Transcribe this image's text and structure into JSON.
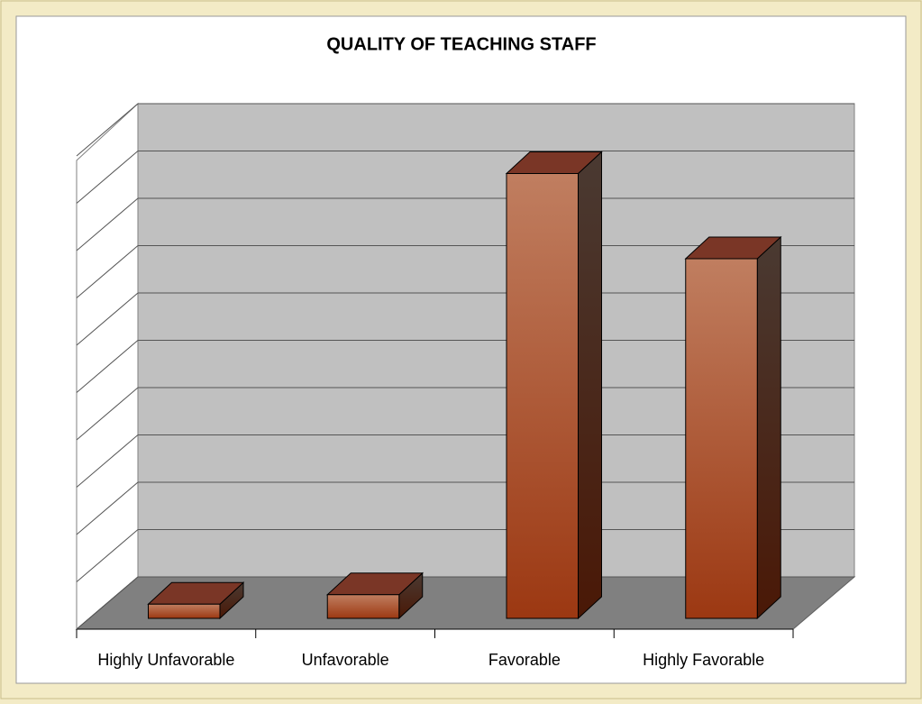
{
  "chart_data": {
    "type": "bar3d",
    "title": "QUALITY OF TEACHING STAFF",
    "categories": [
      "Highly Unfavorable",
      "Unfavorable",
      "Favorable",
      "Highly Favorable"
    ],
    "values": [
      0.3,
      0.5,
      9.4,
      7.6
    ],
    "color": "#b8603a",
    "ylim": [
      0,
      10
    ],
    "yticks": [
      0,
      1,
      2,
      3,
      4,
      5,
      6,
      7,
      8,
      9,
      10
    ],
    "grid": true
  }
}
